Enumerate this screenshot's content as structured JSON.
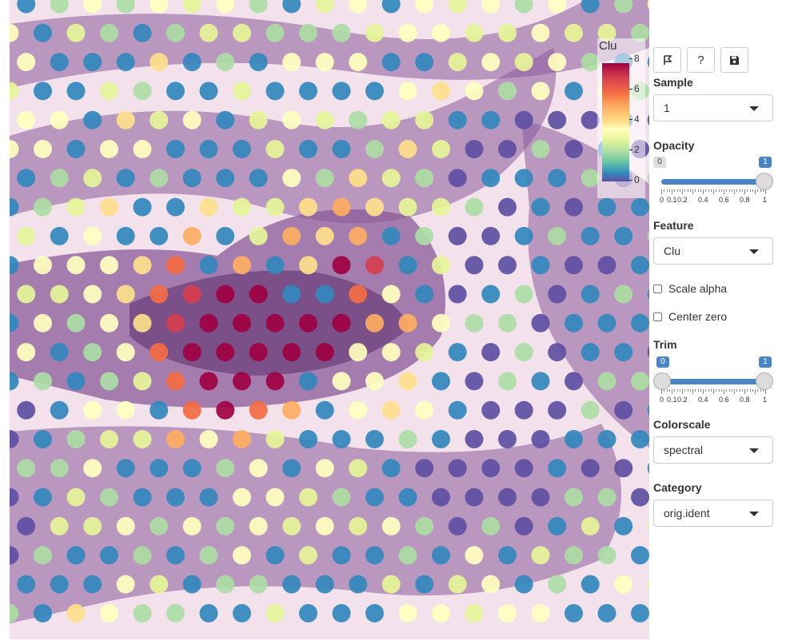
{
  "viewer": {
    "legend": {
      "title": "Clu",
      "ticks": [
        "8",
        "6",
        "4",
        "2",
        "0"
      ]
    }
  },
  "toolbar": {
    "buttons": [
      {
        "name": "select-region-button",
        "icon": "lasso-flag-icon"
      },
      {
        "name": "help-button",
        "icon": "question-icon",
        "label": "?"
      },
      {
        "name": "save-button",
        "icon": "save-icon"
      }
    ]
  },
  "controls": {
    "sample": {
      "label": "Sample",
      "value": "1"
    },
    "opacity": {
      "label": "Opacity",
      "min_bubble": "0",
      "max_bubble": "1",
      "value": 1,
      "tick_labels": [
        "0",
        "0.1",
        "0.2",
        "0.4",
        "0.6",
        "0.8",
        "1"
      ]
    },
    "feature": {
      "label": "Feature",
      "value": "Clu"
    },
    "scale_alpha": {
      "label": "Scale alpha",
      "checked": false
    },
    "center_zero": {
      "label": "Center zero",
      "checked": false
    },
    "trim": {
      "label": "Trim",
      "min_bubble": "0",
      "max_bubble": "1",
      "range": [
        0,
        1
      ],
      "tick_labels": [
        "0",
        "0.1",
        "0.2",
        "0.4",
        "0.6",
        "0.8",
        "1"
      ]
    },
    "colorscale": {
      "label": "Colorscale",
      "value": "spectral"
    },
    "category": {
      "label": "Category",
      "value": "orig.ident"
    }
  },
  "colors": {
    "accent": "#4a86c6",
    "tissue_background": "#f3e7ef",
    "tissue_stain": "#8a5a9a",
    "spot_palette": [
      "#5e4fa2",
      "#3288bd",
      "#abdda4",
      "#e6f598",
      "#ffffbf",
      "#fee08b",
      "#fdae61",
      "#f46d43",
      "#d53e4f",
      "#9e0142"
    ]
  }
}
